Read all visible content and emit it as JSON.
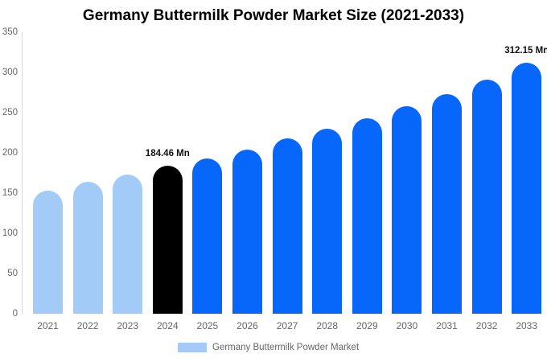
{
  "title": "Germany Buttermilk Powder Market Size (2021-2033)",
  "colors": {
    "bar_historical": "#A2CBF8",
    "bar_highlight": "#000000",
    "bar_forecast": "#0667FA",
    "axis_line": "#D8D8D8",
    "tick_text": "#666666",
    "value_label_text": "#111111",
    "background": "#FFFFFF"
  },
  "chart_data": {
    "type": "bar",
    "title": "Germany Buttermilk Powder Market Size (2021-2033)",
    "xlabel": "",
    "ylabel": "",
    "categories": [
      "2021",
      "2022",
      "2023",
      "2024",
      "2025",
      "2026",
      "2027",
      "2028",
      "2029",
      "2030",
      "2031",
      "2032",
      "2033"
    ],
    "values": [
      153,
      164,
      173,
      184.46,
      193,
      204,
      218,
      230,
      243,
      258,
      273,
      291,
      312.15
    ],
    "unit": "Mn",
    "bar_colors": [
      "#A2CBF8",
      "#A2CBF8",
      "#A2CBF8",
      "#000000",
      "#0667FA",
      "#0667FA",
      "#0667FA",
      "#0667FA",
      "#0667FA",
      "#0667FA",
      "#0667FA",
      "#0667FA",
      "#0667FA"
    ],
    "ylim": [
      0,
      350
    ],
    "yticks": [
      0,
      50,
      100,
      150,
      200,
      250,
      300,
      350
    ],
    "grid": false,
    "annotations": [
      {
        "index": 3,
        "text": "184.46 Mn"
      },
      {
        "index": 12,
        "text": "312.15 Mn"
      }
    ],
    "legend": {
      "position": "bottom",
      "label": "Germany Buttermilk Powder Market",
      "swatch_color": "#A2CBF8"
    }
  }
}
